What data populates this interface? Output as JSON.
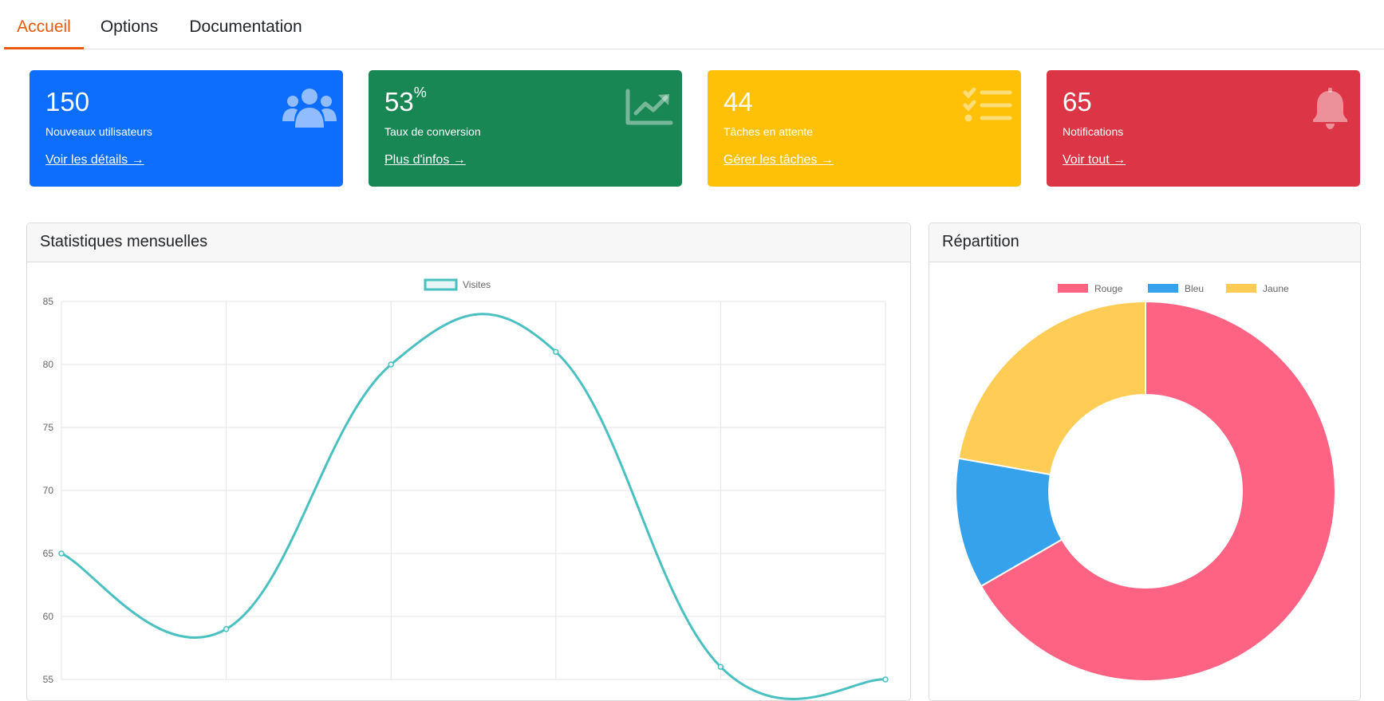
{
  "tabs": [
    {
      "label": "Accueil",
      "active": true
    },
    {
      "label": "Options",
      "active": false
    },
    {
      "label": "Documentation",
      "active": false
    }
  ],
  "cards": [
    {
      "value": "150",
      "unit": "",
      "label": "Nouveaux utilisateurs",
      "link": "Voir les détails →",
      "color": "#0d6efd",
      "icon": "users-icon"
    },
    {
      "value": "53",
      "unit": "%",
      "label": "Taux de conversion",
      "link": "Plus d'infos →",
      "color": "#198754",
      "icon": "chart-line-icon"
    },
    {
      "value": "44",
      "unit": "",
      "label": "Tâches en attente",
      "link": "Gérer les tâches →",
      "color": "#ffc107",
      "icon": "tasks-icon"
    },
    {
      "value": "65",
      "unit": "",
      "label": "Notifications",
      "link": "Voir tout →",
      "color": "#dc3545",
      "icon": "bell-icon"
    }
  ],
  "panels": {
    "line_title": "Statistiques mensuelles",
    "doughnut_title": "Répartition"
  },
  "chart_data": [
    {
      "type": "line",
      "series": [
        {
          "name": "Visites",
          "values": [
            65,
            59,
            80,
            81,
            56,
            55
          ],
          "color": "#4bc0c0"
        }
      ],
      "y_ticks": [
        "85",
        "80",
        "75",
        "70",
        "65",
        "60",
        "55"
      ],
      "ylim": [
        55,
        85
      ],
      "grid": true,
      "legend": "top"
    },
    {
      "type": "pie",
      "subtype": "doughnut",
      "categories": [
        "Rouge",
        "Bleu",
        "Jaune"
      ],
      "values": [
        300,
        50,
        100
      ],
      "colors": [
        "#ff6384",
        "#36a2eb",
        "#ffcd56"
      ],
      "legend": "top"
    }
  ]
}
